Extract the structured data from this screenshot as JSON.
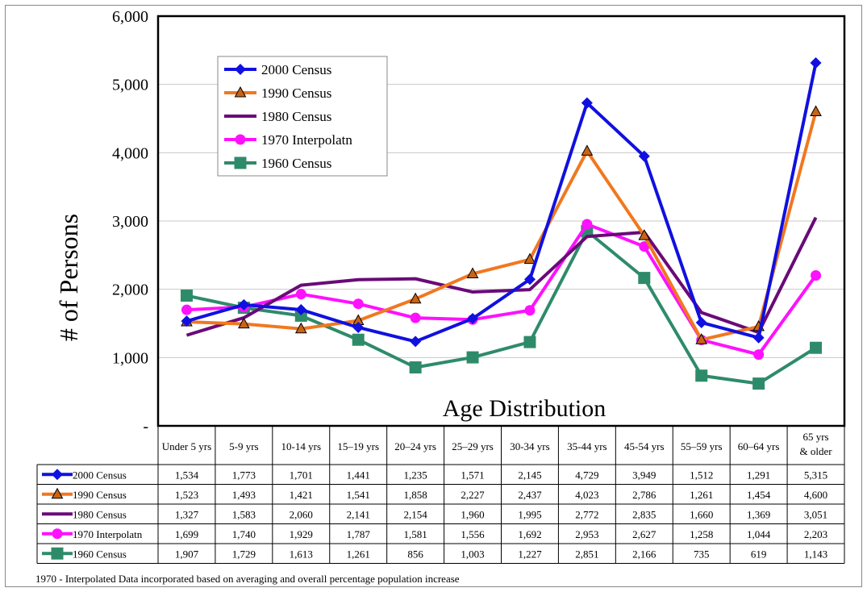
{
  "chart_data": {
    "type": "line",
    "title": "",
    "xlabel": "Age Distribution",
    "ylabel": "# of Persons",
    "ylim": [
      0,
      6000
    ],
    "yticks": [
      0,
      1000,
      2000,
      3000,
      4000,
      5000,
      6000
    ],
    "ytick_labels": [
      "-",
      "1,000",
      "2,000",
      "3,000",
      "4,000",
      "5,000",
      "6,000"
    ],
    "grid": true,
    "legend_position": "top-left",
    "categories": [
      "Under 5 yrs",
      "5-9 yrs",
      "10-14 yrs",
      "15–19 yrs",
      "20–24 yrs",
      "25–29 yrs",
      "30-34 yrs",
      "35-44 yrs",
      "45-54 yrs",
      "55–59 yrs",
      "60–64 yrs",
      "65 yrs & older"
    ],
    "series": [
      {
        "name": "2000 Census",
        "color": "#1010e0",
        "marker": "diamond",
        "values": [
          1534,
          1773,
          1701,
          1441,
          1235,
          1571,
          2145,
          4729,
          3949,
          1512,
          1291,
          5315
        ],
        "labels": [
          "1,534",
          "1,773",
          "1,701",
          "1,441",
          "1,235",
          "1,571",
          "2,145",
          "4,729",
          "3,949",
          "1,512",
          "1,291",
          "5,315"
        ]
      },
      {
        "name": "1990 Census",
        "color": "#f07820",
        "marker": "triangle",
        "values": [
          1523,
          1493,
          1421,
          1541,
          1858,
          2227,
          2437,
          4023,
          2786,
          1261,
          1454,
          4600
        ],
        "labels": [
          "1,523",
          "1,493",
          "1,421",
          "1,541",
          "1,858",
          "2,227",
          "2,437",
          "4,023",
          "2,786",
          "1,261",
          "1,454",
          "4,600"
        ]
      },
      {
        "name": "1980 Census",
        "color": "#6a0a78",
        "marker": "none",
        "values": [
          1327,
          1583,
          2060,
          2141,
          2154,
          1960,
          1995,
          2772,
          2835,
          1660,
          1369,
          3051
        ],
        "labels": [
          "1,327",
          "1,583",
          "2,060",
          "2,141",
          "2,154",
          "1,960",
          "1,995",
          "2,772",
          "2,835",
          "1,660",
          "1,369",
          "3,051"
        ]
      },
      {
        "name": "1970 Interpolatn",
        "color": "#ff10ff",
        "marker": "circle",
        "values": [
          1699,
          1740,
          1929,
          1787,
          1581,
          1556,
          1692,
          2953,
          2627,
          1258,
          1044,
          2203
        ],
        "labels": [
          "1,699",
          "1,740",
          "1,929",
          "1,787",
          "1,581",
          "1,556",
          "1,692",
          "2,953",
          "2,627",
          "1,258",
          "1,044",
          "2,203"
        ]
      },
      {
        "name": "1960 Census",
        "color": "#2e8b6a",
        "marker": "square",
        "values": [
          1907,
          1729,
          1613,
          1261,
          856,
          1003,
          1227,
          2851,
          2166,
          735,
          619,
          1143
        ],
        "labels": [
          "1,907",
          "1,729",
          "1,613",
          "1,261",
          "856",
          "1,003",
          "1,227",
          "2,851",
          "2,166",
          "735",
          "619",
          "1,143"
        ]
      }
    ],
    "footnote": "1970 - Interpolated Data incorporated based on averaging and overall percentage population increase"
  }
}
